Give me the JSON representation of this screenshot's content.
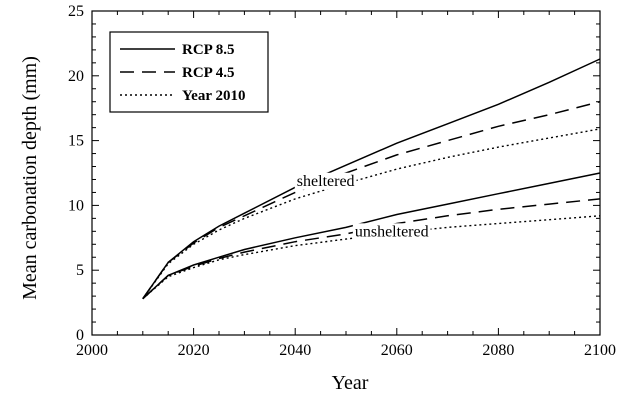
{
  "chart_data": {
    "type": "line",
    "xlabel": "Year",
    "ylabel": "Mean carbonation depth (mm)",
    "xlim": [
      2000,
      2100
    ],
    "ylim": [
      0,
      25
    ],
    "xticks": [
      2000,
      2020,
      2040,
      2060,
      2080,
      2100
    ],
    "yticks": [
      0,
      5,
      10,
      15,
      20,
      25
    ],
    "grid": false,
    "legend_position": "top-left",
    "legend": [
      {
        "label": "RCP 8.5",
        "style": "solid"
      },
      {
        "label": "RCP 4.5",
        "style": "dashed"
      },
      {
        "label": "Year 2010",
        "style": "dotted"
      }
    ],
    "annotations": [
      {
        "text": "sheltered",
        "x": 2046,
        "y": 11.9
      },
      {
        "text": "unsheltered",
        "x": 2059,
        "y": 8.0
      }
    ],
    "series": [
      {
        "name": "RCP 8.5",
        "group": "sheltered",
        "style": "solid",
        "x": [
          2010,
          2015,
          2020,
          2025,
          2030,
          2040,
          2050,
          2060,
          2070,
          2080,
          2090,
          2100
        ],
        "y": [
          2.8,
          5.6,
          7.2,
          8.4,
          9.4,
          11.4,
          13.1,
          14.8,
          16.3,
          17.8,
          19.5,
          21.3
        ]
      },
      {
        "name": "RCP 4.5",
        "group": "sheltered",
        "style": "dashed",
        "x": [
          2010,
          2015,
          2020,
          2025,
          2030,
          2040,
          2050,
          2060,
          2070,
          2080,
          2090,
          2100
        ],
        "y": [
          2.8,
          5.6,
          7.1,
          8.3,
          9.2,
          11.0,
          12.5,
          13.9,
          15.0,
          16.1,
          17.0,
          18.0
        ]
      },
      {
        "name": "Year 2010",
        "group": "sheltered",
        "style": "dotted",
        "x": [
          2010,
          2015,
          2020,
          2025,
          2030,
          2040,
          2050,
          2060,
          2070,
          2080,
          2090,
          2100
        ],
        "y": [
          2.8,
          5.5,
          7.0,
          8.1,
          9.0,
          10.5,
          11.7,
          12.8,
          13.7,
          14.5,
          15.2,
          15.9
        ]
      },
      {
        "name": "RCP 8.5",
        "group": "unsheltered",
        "style": "solid",
        "x": [
          2010,
          2015,
          2020,
          2025,
          2030,
          2040,
          2050,
          2060,
          2070,
          2080,
          2090,
          2100
        ],
        "y": [
          2.8,
          4.6,
          5.4,
          6.0,
          6.6,
          7.5,
          8.3,
          9.3,
          10.1,
          10.9,
          11.7,
          12.5
        ]
      },
      {
        "name": "RCP 4.5",
        "group": "unsheltered",
        "style": "dashed",
        "x": [
          2010,
          2015,
          2020,
          2025,
          2030,
          2040,
          2050,
          2060,
          2070,
          2080,
          2090,
          2100
        ],
        "y": [
          2.8,
          4.6,
          5.3,
          5.9,
          6.4,
          7.2,
          7.8,
          8.6,
          9.2,
          9.7,
          10.1,
          10.5
        ]
      },
      {
        "name": "Year 2010",
        "group": "unsheltered",
        "style": "dotted",
        "x": [
          2010,
          2015,
          2020,
          2025,
          2030,
          2040,
          2050,
          2060,
          2070,
          2080,
          2090,
          2100
        ],
        "y": [
          2.8,
          4.5,
          5.2,
          5.8,
          6.2,
          6.9,
          7.4,
          7.9,
          8.3,
          8.6,
          8.9,
          9.2
        ]
      }
    ]
  }
}
